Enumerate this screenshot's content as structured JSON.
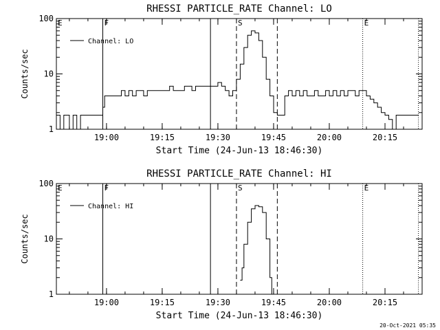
{
  "footer": {
    "timestamp": "20-Oct-2021 05:35"
  },
  "chart_data": [
    {
      "type": "line",
      "title": "RHESSI PARTICLE_RATE Channel: LO",
      "xlabel": "Start Time (24-Jun-13 18:46:30)",
      "ylabel": "Counts/sec",
      "y_scale": "log",
      "ylim": [
        1,
        100
      ],
      "y_ticks": [
        "1",
        "10",
        "100"
      ],
      "xlim": [
        "18:46:30",
        "20:25:00"
      ],
      "x_ticks": [
        "19:00",
        "19:15",
        "19:30",
        "19:45",
        "20:00",
        "20:15"
      ],
      "legend": {
        "placement": "top-left",
        "entries": [
          "Channel: LO"
        ]
      },
      "markers": [
        {
          "label": "E",
          "time": "18:46:30",
          "style": "dotted"
        },
        {
          "label": "F",
          "time": "18:59:00",
          "style": "solid"
        },
        {
          "label": "",
          "time": "19:28:00",
          "style": "solid"
        },
        {
          "label": "S",
          "time": "19:35:00",
          "style": "dashed"
        },
        {
          "label": "",
          "time": "19:46:00",
          "style": "dashed"
        },
        {
          "label": "E",
          "time": "20:09:00",
          "style": "dotted"
        },
        {
          "label": "",
          "time": "20:24:00",
          "style": "dotted"
        }
      ],
      "series": [
        {
          "name": "Channel: LO",
          "x": [
            "18:46:30",
            "18:47:30",
            "18:48:30",
            "18:49:00",
            "18:50:00",
            "18:51:00",
            "18:52:00",
            "18:53:00",
            "18:54:00",
            "18:55:00",
            "18:56:00",
            "18:57:00",
            "18:58:00",
            "18:59:00",
            "18:59:30",
            "19:00:30",
            "19:03:00",
            "19:04:00",
            "19:05:00",
            "19:06:00",
            "19:07:00",
            "19:08:00",
            "19:09:00",
            "19:10:00",
            "19:11:00",
            "19:12:00",
            "19:13:00",
            "19:14:00",
            "19:15:00",
            "19:16:00",
            "19:17:00",
            "19:18:00",
            "19:19:00",
            "19:20:00",
            "19:21:00",
            "19:22:00",
            "19:23:00",
            "19:24:00",
            "19:25:00",
            "19:26:00",
            "19:27:00",
            "19:28:00",
            "19:29:00",
            "19:30:00",
            "19:31:00",
            "19:32:00",
            "19:33:00",
            "19:34:00",
            "19:35:00",
            "19:36:00",
            "19:37:00",
            "19:38:00",
            "19:39:00",
            "19:40:00",
            "19:41:00",
            "19:42:00",
            "19:43:00",
            "19:44:00",
            "19:45:00",
            "19:46:00",
            "19:47:00",
            "19:48:00",
            "19:49:00",
            "19:50:00",
            "19:51:00",
            "19:52:00",
            "19:53:00",
            "19:54:00",
            "19:55:00",
            "19:56:00",
            "19:57:00",
            "19:58:00",
            "19:59:00",
            "20:00:00",
            "20:01:00",
            "20:02:00",
            "20:03:00",
            "20:04:00",
            "20:05:00",
            "20:06:00",
            "20:07:00",
            "20:08:00",
            "20:09:00",
            "20:10:00",
            "20:11:00",
            "20:12:00",
            "20:13:00",
            "20:14:00",
            "20:15:00",
            "20:16:00",
            "20:17:00",
            "20:18:00",
            "20:19:00",
            "20:20:00",
            "20:21:00",
            "20:22:00",
            "20:23:00",
            "20:24:00"
          ],
          "y": [
            1.8,
            1.0,
            1.8,
            1.8,
            1.0,
            1.8,
            1.0,
            1.8,
            1.8,
            1.8,
            1.8,
            1.8,
            1.8,
            2.5,
            4.0,
            4.0,
            4.0,
            5.0,
            4.0,
            5.0,
            4.0,
            5.0,
            5.0,
            4.0,
            5.0,
            5.0,
            5.0,
            5.0,
            5.0,
            5.0,
            6.0,
            5.0,
            5.0,
            5.0,
            6.0,
            6.0,
            5.0,
            6.0,
            6.0,
            6.0,
            6.0,
            6.0,
            6.0,
            7.0,
            6.0,
            5.0,
            4.0,
            5.0,
            8.0,
            15.0,
            30.0,
            50.0,
            60.0,
            55.0,
            40.0,
            20.0,
            8.0,
            4.0,
            2.0,
            1.8,
            1.8,
            4.0,
            5.0,
            4.0,
            5.0,
            4.0,
            5.0,
            4.0,
            4.0,
            5.0,
            4.0,
            4.0,
            5.0,
            4.0,
            5.0,
            4.0,
            5.0,
            4.0,
            5.0,
            5.0,
            4.0,
            5.0,
            5.0,
            4.0,
            3.5,
            3.0,
            2.5,
            2.0,
            1.8,
            1.5,
            1.0,
            1.8,
            1.8,
            1.8,
            1.8,
            1.8,
            1.8,
            1.8
          ]
        }
      ]
    },
    {
      "type": "line",
      "title": "RHESSI PARTICLE_RATE Channel: HI",
      "xlabel": "Start Time (24-Jun-13 18:46:30)",
      "ylabel": "Counts/sec",
      "y_scale": "log",
      "ylim": [
        1,
        100
      ],
      "y_ticks": [
        "1",
        "10",
        "100"
      ],
      "xlim": [
        "18:46:30",
        "20:25:00"
      ],
      "x_ticks": [
        "19:00",
        "19:15",
        "19:30",
        "19:45",
        "20:00",
        "20:15"
      ],
      "legend": {
        "placement": "top-left",
        "entries": [
          "Channel: HI"
        ]
      },
      "markers": [
        {
          "label": "E",
          "time": "18:46:30",
          "style": "dotted"
        },
        {
          "label": "F",
          "time": "18:59:00",
          "style": "solid"
        },
        {
          "label": "",
          "time": "19:28:00",
          "style": "solid"
        },
        {
          "label": "S",
          "time": "19:35:00",
          "style": "dashed"
        },
        {
          "label": "",
          "time": "19:46:00",
          "style": "dashed"
        },
        {
          "label": "E",
          "time": "20:09:00",
          "style": "dotted"
        },
        {
          "label": "",
          "time": "20:24:00",
          "style": "dotted"
        }
      ],
      "series": [
        {
          "name": "Channel: HI",
          "x": [
            "19:36:00",
            "19:36:30",
            "19:37:00",
            "19:38:00",
            "19:39:00",
            "19:40:00",
            "19:41:00",
            "19:42:00",
            "19:43:00",
            "19:44:00",
            "19:44:30"
          ],
          "y": [
            1.8,
            3.0,
            8.0,
            20.0,
            35.0,
            40.0,
            38.0,
            30.0,
            10.0,
            2.0,
            1.0
          ]
        }
      ]
    }
  ]
}
